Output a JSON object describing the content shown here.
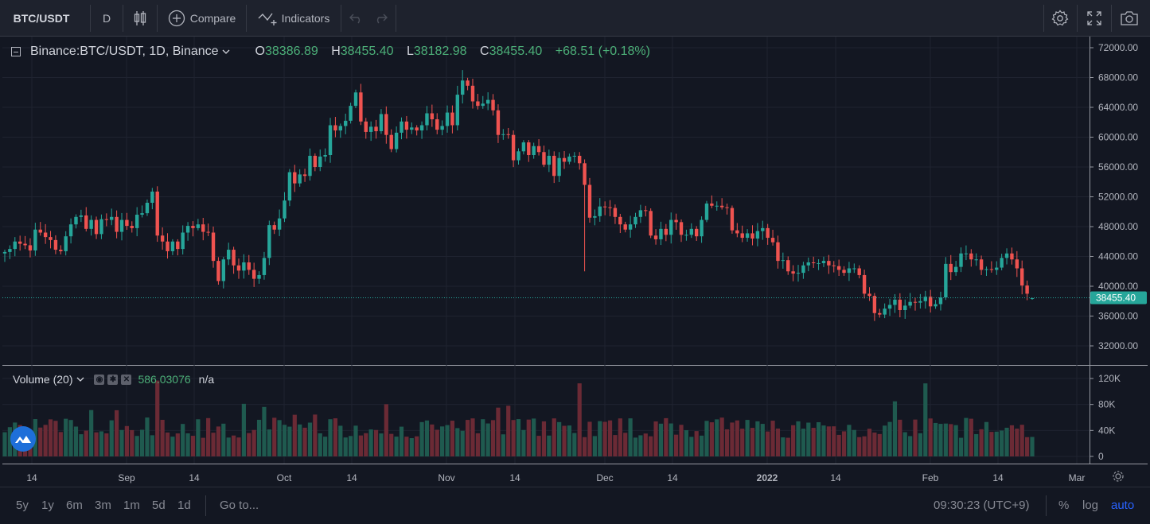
{
  "toolbar": {
    "symbol": "BTC/USDT",
    "interval": "D",
    "compare_label": "Compare",
    "indicators_label": "Indicators",
    "icons": [
      "candles-icon",
      "plus-circle-icon",
      "indicators-icon",
      "undo-icon",
      "redo-icon",
      "settings-icon",
      "fullscreen-icon",
      "camera-icon"
    ]
  },
  "legend": {
    "title": "Binance:BTC/USDT, 1D, Binance",
    "o_key": "O",
    "o_val": "38386.89",
    "h_key": "H",
    "h_val": "38455.40",
    "l_key": "L",
    "l_val": "38182.98",
    "c_key": "C",
    "c_val": "38455.40",
    "change": "+68.51 (+0.18%)"
  },
  "volume_legend": {
    "title": "Volume (20)",
    "value": "586.03076",
    "extra": "n/a"
  },
  "price_axis": {
    "ticks": [
      "72000.00",
      "68000.00",
      "64000.00",
      "60000.00",
      "56000.00",
      "52000.00",
      "48000.00",
      "44000.00",
      "40000.00",
      "36000.00",
      "32000.00"
    ],
    "last_price": "38455.40"
  },
  "volume_axis": {
    "ticks": [
      "120K",
      "80K",
      "40K",
      "0"
    ]
  },
  "time_axis": {
    "ticks": [
      "14",
      "Sep",
      "14",
      "Oct",
      "14",
      "Nov",
      "14",
      "Dec",
      "14",
      "2022",
      "14",
      "Feb",
      "14",
      "Mar"
    ]
  },
  "bottom": {
    "ranges": [
      "5y",
      "1y",
      "6m",
      "3m",
      "1m",
      "5d",
      "1d"
    ],
    "goto": "Go to...",
    "clock": "09:30:23 (UTC+9)",
    "percent": "%",
    "log": "log",
    "auto": "auto"
  },
  "colors": {
    "up": "#26a69a",
    "down": "#ef5350",
    "background": "#131722",
    "last_price_label": "#26a69a",
    "accent": "#2962ff"
  },
  "chart_data": {
    "type": "candlestick",
    "symbol": "BTC/USDT",
    "interval": "1D",
    "x_start": "2021-08-07",
    "y_range": [
      30000,
      73000
    ],
    "volume_range": [
      0,
      120000
    ],
    "closes": [
      44600,
      45000,
      46000,
      45700,
      45500,
      44800,
      47600,
      47200,
      46600,
      46200,
      44900,
      44700,
      46700,
      48300,
      49300,
      49500,
      47700,
      48900,
      47000,
      49000,
      48900,
      49300,
      47300,
      48900,
      48100,
      47800,
      49600,
      49800,
      51200,
      52700,
      46800,
      46000,
      44700,
      46000,
      45000,
      47200,
      48100,
      47800,
      48300,
      47300,
      47200,
      43400,
      40700,
      43600,
      44900,
      42800,
      42100,
      43200,
      42200,
      41000,
      41500,
      43800,
      48200,
      47600,
      49100,
      51500,
      55300,
      53800,
      55000,
      54800,
      57500,
      56000,
      57400,
      57600,
      61600,
      60900,
      61500,
      62200,
      64200,
      66000,
      62100,
      60700,
      61400,
      60800,
      63100,
      60300,
      58400,
      60600,
      62100,
      61000,
      61300,
      60900,
      61600,
      63200,
      62400,
      61000,
      61500,
      63300,
      61600,
      65700,
      67600,
      66900,
      64800,
      64200,
      64500,
      65000,
      63600,
      60300,
      60400,
      60300,
      56900,
      58100,
      59300,
      57600,
      58800,
      58000,
      56300,
      57500,
      54800,
      57200,
      56700,
      57400,
      57500,
      56500,
      53600,
      49200,
      49400,
      50700,
      50600,
      50500,
      49300,
      48300,
      47600,
      48300,
      49300,
      50200,
      50100,
      46800,
      46300,
      47700,
      46900,
      48900,
      48600,
      46900,
      46900,
      47700,
      46700,
      48900,
      51100,
      50800,
      50800,
      50600,
      50500,
      47500,
      47100,
      46500,
      47100,
      46400,
      47400,
      47800,
      46500,
      45900,
      43400,
      43500,
      42000,
      41700,
      41800,
      42800,
      43200,
      43100,
      43100,
      43400,
      42800,
      42700,
      42200,
      41800,
      42400,
      42400,
      41500,
      39000,
      38700,
      36400,
      36200,
      37000,
      37500,
      38200,
      36800,
      37400,
      37900,
      37800,
      38000,
      38600,
      37300,
      37600,
      38500,
      43000,
      41900,
      42600,
      44400,
      44400,
      43600,
      43600,
      42200,
      42300,
      42200,
      42500,
      43800,
      44400,
      43600,
      42400,
      40100,
      39000,
      38400
    ],
    "bars_note": "daily candles, green=up red=down; last candle close 38455.40"
  }
}
